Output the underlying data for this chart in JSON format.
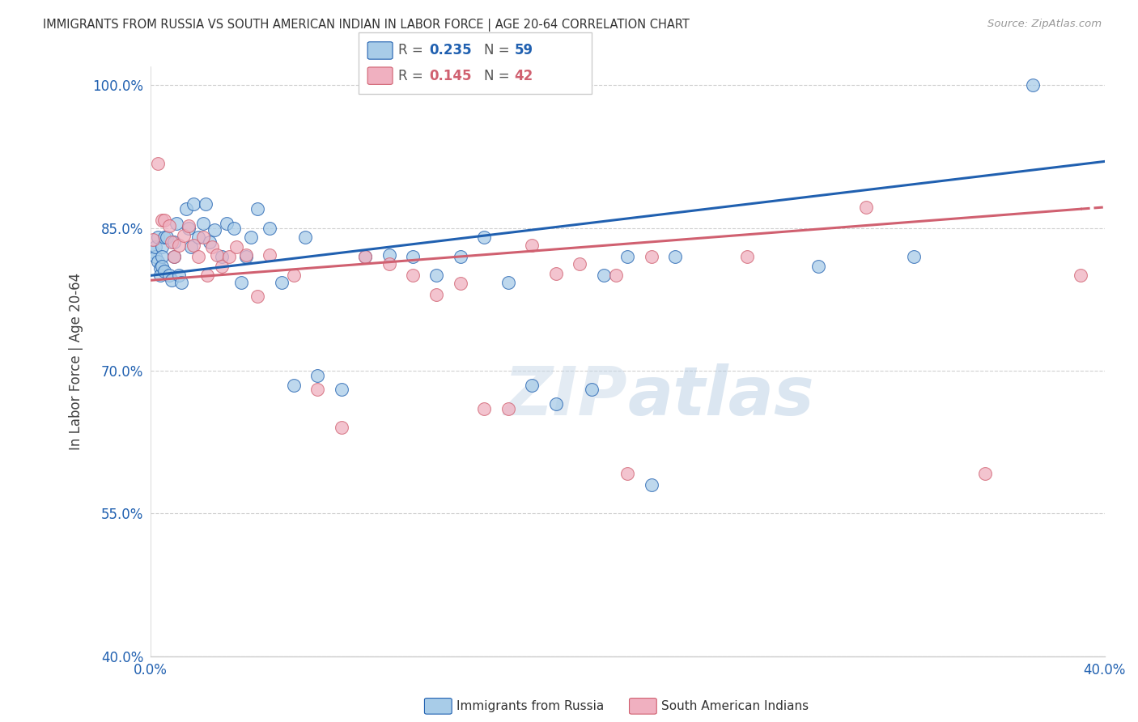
{
  "title": "IMMIGRANTS FROM RUSSIA VS SOUTH AMERICAN INDIAN IN LABOR FORCE | AGE 20-64 CORRELATION CHART",
  "source": "Source: ZipAtlas.com",
  "ylabel": "In Labor Force | Age 20-64",
  "xlim": [
    0.0,
    0.4
  ],
  "ylim": [
    0.4,
    1.02
  ],
  "xticks": [
    0.0,
    0.05,
    0.1,
    0.15,
    0.2,
    0.25,
    0.3,
    0.35,
    0.4
  ],
  "xticklabels": [
    "0.0%",
    "",
    "",
    "",
    "",
    "",
    "",
    "",
    "40.0%"
  ],
  "yticks": [
    0.4,
    0.55,
    0.7,
    0.85,
    1.0
  ],
  "yticklabels": [
    "40.0%",
    "55.0%",
    "70.0%",
    "85.0%",
    "100.0%"
  ],
  "blue_R": 0.235,
  "blue_N": 59,
  "pink_R": 0.145,
  "pink_N": 42,
  "blue_color": "#a8cce8",
  "pink_color": "#f0b0c0",
  "blue_line_color": "#2060b0",
  "pink_line_color": "#d06070",
  "legend_label_blue": "Immigrants from Russia",
  "legend_label_pink": "South American Indians",
  "blue_scatter_x": [
    0.001,
    0.002,
    0.002,
    0.003,
    0.003,
    0.004,
    0.004,
    0.005,
    0.005,
    0.005,
    0.006,
    0.006,
    0.007,
    0.008,
    0.009,
    0.01,
    0.01,
    0.011,
    0.012,
    0.013,
    0.015,
    0.016,
    0.017,
    0.018,
    0.02,
    0.022,
    0.023,
    0.025,
    0.027,
    0.03,
    0.032,
    0.035,
    0.038,
    0.04,
    0.042,
    0.045,
    0.05,
    0.055,
    0.06,
    0.065,
    0.07,
    0.08,
    0.09,
    0.1,
    0.11,
    0.12,
    0.13,
    0.14,
    0.15,
    0.16,
    0.17,
    0.185,
    0.19,
    0.2,
    0.21,
    0.22,
    0.28,
    0.32,
    0.37
  ],
  "blue_scatter_y": [
    0.825,
    0.82,
    0.83,
    0.815,
    0.84,
    0.808,
    0.8,
    0.83,
    0.82,
    0.81,
    0.84,
    0.805,
    0.84,
    0.8,
    0.795,
    0.82,
    0.835,
    0.855,
    0.8,
    0.793,
    0.87,
    0.85,
    0.83,
    0.875,
    0.84,
    0.855,
    0.875,
    0.835,
    0.848,
    0.82,
    0.855,
    0.85,
    0.793,
    0.82,
    0.84,
    0.87,
    0.85,
    0.793,
    0.685,
    0.84,
    0.695,
    0.68,
    0.82,
    0.822,
    0.82,
    0.8,
    0.82,
    0.84,
    0.793,
    0.685,
    0.665,
    0.68,
    0.8,
    0.82,
    0.58,
    0.82,
    0.81,
    0.82,
    1.0
  ],
  "pink_scatter_x": [
    0.001,
    0.003,
    0.005,
    0.006,
    0.008,
    0.009,
    0.01,
    0.012,
    0.014,
    0.016,
    0.018,
    0.02,
    0.022,
    0.024,
    0.026,
    0.028,
    0.03,
    0.033,
    0.036,
    0.04,
    0.045,
    0.05,
    0.06,
    0.07,
    0.08,
    0.09,
    0.1,
    0.11,
    0.12,
    0.13,
    0.14,
    0.15,
    0.16,
    0.17,
    0.18,
    0.195,
    0.2,
    0.21,
    0.25,
    0.3,
    0.35,
    0.39
  ],
  "pink_scatter_y": [
    0.838,
    0.918,
    0.858,
    0.858,
    0.852,
    0.835,
    0.82,
    0.832,
    0.842,
    0.852,
    0.832,
    0.82,
    0.84,
    0.8,
    0.83,
    0.822,
    0.81,
    0.82,
    0.83,
    0.822,
    0.778,
    0.822,
    0.8,
    0.68,
    0.64,
    0.82,
    0.812,
    0.8,
    0.78,
    0.792,
    0.66,
    0.66,
    0.832,
    0.802,
    0.812,
    0.8,
    0.592,
    0.82,
    0.82,
    0.872,
    0.592,
    0.8
  ]
}
